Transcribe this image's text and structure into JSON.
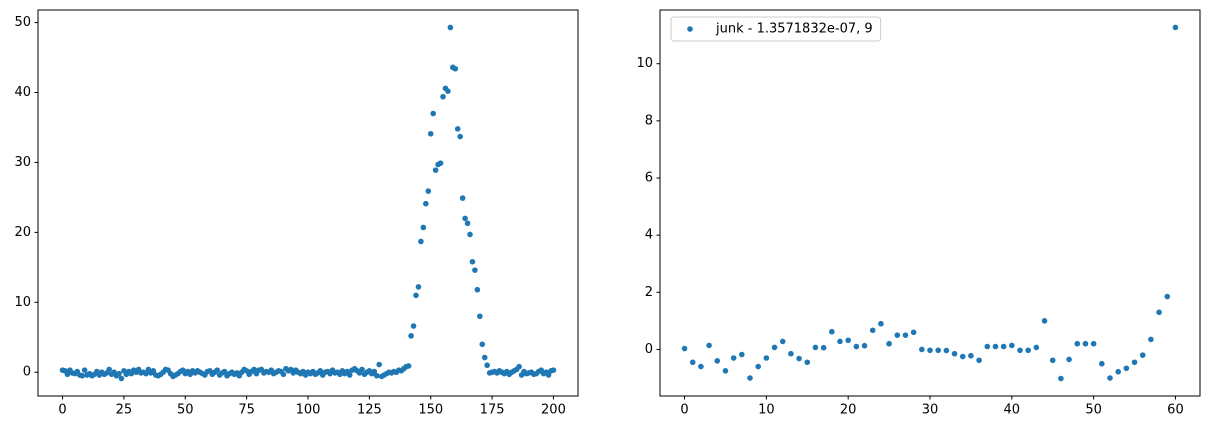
{
  "chart_data": [
    {
      "type": "scatter",
      "color": "#1f77b4",
      "x": [
        0,
        1,
        2,
        3,
        4,
        5,
        6,
        7,
        8,
        9,
        10,
        11,
        12,
        13,
        14,
        15,
        16,
        17,
        18,
        19,
        20,
        21,
        22,
        23,
        24,
        25,
        26,
        27,
        28,
        29,
        30,
        31,
        32,
        33,
        34,
        35,
        36,
        37,
        38,
        39,
        40,
        41,
        42,
        43,
        44,
        45,
        46,
        47,
        48,
        49,
        50,
        51,
        52,
        53,
        54,
        55,
        56,
        57,
        58,
        59,
        60,
        61,
        62,
        63,
        64,
        65,
        66,
        67,
        68,
        69,
        70,
        71,
        72,
        73,
        74,
        75,
        76,
        77,
        78,
        79,
        80,
        81,
        82,
        83,
        84,
        85,
        86,
        87,
        88,
        89,
        90,
        91,
        92,
        93,
        94,
        95,
        96,
        97,
        98,
        99,
        100,
        101,
        102,
        103,
        104,
        105,
        106,
        107,
        108,
        109,
        110,
        111,
        112,
        113,
        114,
        115,
        116,
        117,
        118,
        119,
        120,
        121,
        122,
        123,
        124,
        125,
        126,
        127,
        128,
        129,
        130,
        131,
        132,
        133,
        134,
        135,
        136,
        137,
        138,
        139,
        140,
        141,
        142,
        143,
        144,
        145,
        146,
        147,
        148,
        149,
        150,
        151,
        152,
        153,
        154,
        155,
        156,
        157,
        158,
        159,
        160,
        161,
        162,
        163,
        164,
        165,
        166,
        167,
        168,
        169,
        170,
        171,
        172,
        173,
        174,
        175,
        176,
        177,
        178,
        179,
        180,
        181,
        182,
        183,
        184,
        185,
        186,
        187,
        188,
        189,
        190,
        191,
        192,
        193,
        194,
        195,
        196,
        197,
        198,
        199,
        200
      ],
      "values": [
        0.3,
        0.2,
        -0.3,
        0.3,
        -0.1,
        -0.2,
        0.1,
        -0.4,
        -0.5,
        0.3,
        -0.4,
        -0.2,
        -0.5,
        -0.3,
        0.1,
        -0.4,
        0.0,
        -0.3,
        -0.1,
        0.4,
        -0.3,
        0.0,
        -0.5,
        -0.2,
        -0.9,
        0.2,
        -0.3,
        0.1,
        -0.2,
        0.3,
        0.0,
        0.4,
        -0.1,
        0.0,
        -0.2,
        0.4,
        -0.1,
        0.2,
        -0.4,
        -0.5,
        -0.3,
        0.0,
        0.4,
        0.3,
        -0.2,
        -0.6,
        -0.4,
        -0.2,
        0.1,
        0.3,
        -0.2,
        0.1,
        -0.3,
        0.2,
        -0.1,
        0.2,
        0.0,
        -0.2,
        -0.4,
        0.1,
        0.2,
        -0.3,
        0.0,
        0.3,
        -0.4,
        -0.1,
        0.1,
        -0.5,
        -0.2,
        0.0,
        -0.3,
        -0.1,
        -0.5,
        0.0,
        0.4,
        0.2,
        -0.3,
        0.1,
        0.4,
        -0.2,
        0.3,
        0.4,
        -0.1,
        0.1,
        0.0,
        0.3,
        -0.2,
        0.0,
        0.2,
        0.1,
        -0.3,
        0.5,
        0.2,
        0.4,
        -0.1,
        0.3,
        0.0,
        -0.2,
        0.1,
        -0.4,
        0.0,
        -0.2,
        0.1,
        -0.3,
        -0.1,
        0.2,
        -0.4,
        0.0,
        0.1,
        -0.2,
        0.3,
        -0.1,
        0.0,
        -0.3,
        0.2,
        -0.2,
        0.1,
        -0.4,
        0.3,
        0.5,
        0.2,
        -0.1,
        0.4,
        -0.3,
        0.0,
        0.2,
        -0.2,
        0.1,
        -0.5,
        1.1,
        -0.6,
        -0.4,
        -0.2,
        0.0,
        -0.1,
        0.1,
        0.0,
        0.3,
        0.2,
        0.5,
        0.8,
        0.9,
        5.2,
        6.6,
        11.0,
        12.2,
        18.7,
        20.7,
        24.1,
        25.9,
        34.1,
        37.0,
        28.9,
        29.7,
        29.9,
        39.4,
        40.6,
        40.2,
        49.3,
        43.6,
        43.4,
        34.8,
        33.7,
        24.9,
        22.0,
        21.3,
        19.7,
        15.8,
        14.6,
        11.8,
        8.0,
        4.0,
        2.1,
        1.0,
        -0.1,
        0.0,
        0.1,
        -0.1,
        0.2,
        0.0,
        -0.2,
        0.1,
        -0.3,
        0.0,
        0.2,
        0.4,
        0.8,
        -0.4,
        0.1,
        -0.2,
        -0.1,
        0.0,
        -0.3,
        -0.2,
        0.1,
        0.3,
        -0.2,
        0.0,
        -0.4,
        0.2,
        0.3
      ],
      "xlim": [
        -10,
        210
      ],
      "xticks": [
        0,
        25,
        50,
        75,
        100,
        125,
        150,
        175,
        200
      ],
      "ylim": [
        -3.4,
        51.8
      ],
      "yticks": [
        0,
        10,
        20,
        30,
        40,
        50
      ]
    },
    {
      "type": "scatter",
      "series": [
        {
          "name": "junk - 1.3571832e-07, 9",
          "color": "#1f77b4",
          "x": [
            0,
            1,
            2,
            3,
            4,
            5,
            6,
            7,
            8,
            9,
            10,
            11,
            12,
            13,
            14,
            15,
            16,
            17,
            18,
            19,
            20,
            21,
            22,
            23,
            24,
            25,
            26,
            27,
            28,
            29,
            30,
            31,
            32,
            33,
            34,
            35,
            36,
            37,
            38,
            39,
            40,
            41,
            42,
            43,
            44,
            45,
            46,
            47,
            48,
            49,
            50,
            51,
            52,
            53,
            54,
            55,
            56,
            57,
            58,
            59,
            60
          ],
          "values": [
            0.03,
            -0.45,
            -0.6,
            0.14,
            -0.4,
            -0.75,
            -0.3,
            -0.18,
            -1.0,
            -0.6,
            -0.3,
            0.07,
            0.28,
            -0.15,
            -0.32,
            -0.45,
            0.07,
            0.06,
            0.62,
            0.28,
            0.32,
            0.1,
            0.13,
            0.67,
            0.9,
            0.2,
            0.5,
            0.5,
            0.6,
            0.0,
            -0.03,
            -0.03,
            -0.04,
            -0.15,
            -0.25,
            -0.22,
            -0.38,
            0.1,
            0.1,
            0.1,
            0.14,
            -0.03,
            -0.03,
            0.07,
            1.0,
            -0.38,
            -1.02,
            -0.35,
            0.2,
            0.2,
            0.2,
            -0.5,
            -1.0,
            -0.78,
            -0.66,
            -0.45,
            -0.2,
            0.35,
            1.3,
            1.85,
            11.27
          ]
        }
      ],
      "xlim": [
        -3,
        63
      ],
      "xticks": [
        0,
        10,
        20,
        30,
        40,
        50,
        60
      ],
      "ylim": [
        -1.63,
        11.88
      ],
      "yticks": [
        0,
        2,
        4,
        6,
        8,
        10
      ],
      "legend": "upper left"
    }
  ]
}
